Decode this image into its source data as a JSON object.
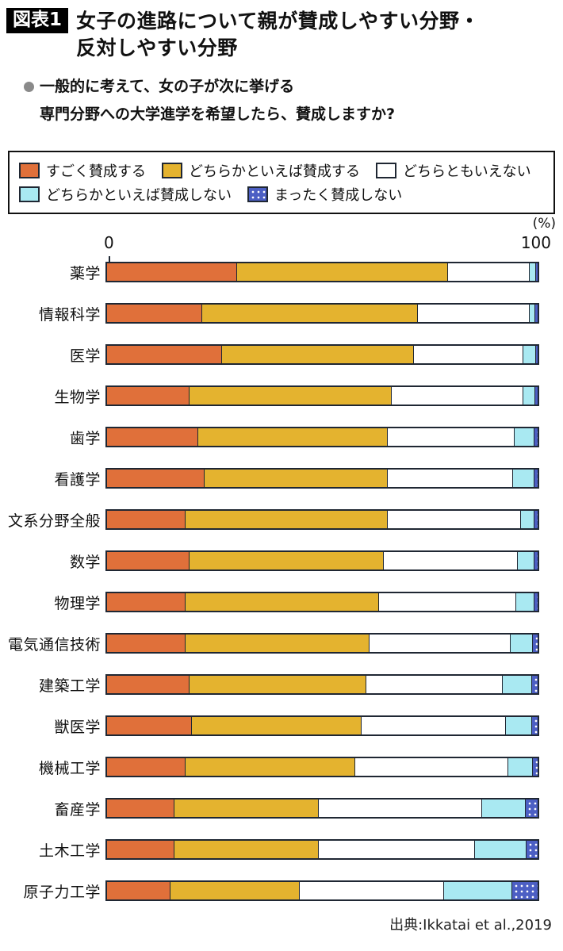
{
  "figure": {
    "badge": "図表1",
    "title_line1": "女子の進路について親が賛成しやすい分野・",
    "title_line2": "反対しやすい分野",
    "question_line1": "一般的に考えて、女の子が次に挙げる",
    "question_line2": "専門分野への大学進学を希望したら、賛成しますか?",
    "source": "出典:Ikkatai et al.,2019"
  },
  "axis": {
    "unit_label": "(%)",
    "min_label": "0",
    "max_label": "100"
  },
  "colors": {
    "strongly_agree": "#E0703A",
    "somewhat_agree": "#E4B32F",
    "neither": "#FFFFFF",
    "somewhat_disagree": "#A9E9F2",
    "strongly_disagree": "#4C5FC4",
    "bar_border": "#1F2733"
  },
  "chart_data": {
    "type": "bar",
    "orientation": "horizontal",
    "stacked": true,
    "unit": "%",
    "xlim": [
      0,
      100
    ],
    "grid": false,
    "legend_position": "top",
    "title": "女子の進路について親が賛成しやすい分野・反対しやすい分野",
    "categories": [
      "薬学",
      "情報科学",
      "医学",
      "生物学",
      "歯学",
      "看護学",
      "文系分野全般",
      "数学",
      "物理学",
      "電気通信技術",
      "建築工学",
      "獣医学",
      "機械工学",
      "畜産学",
      "土木工学",
      "原子力工学"
    ],
    "series": [
      {
        "name": "すごく賛成する",
        "color": "#E0703A",
        "pattern": "solid",
        "values": [
          30,
          22,
          26.5,
          19,
          21,
          22.5,
          18,
          19,
          18,
          18,
          19,
          19.5,
          18,
          15.5,
          15.5,
          14.5
        ]
      },
      {
        "name": "どちらかといえば賛成する",
        "color": "#E4B32F",
        "pattern": "solid",
        "values": [
          49,
          50,
          44.5,
          47,
          44,
          42.5,
          47,
          45,
          45,
          42.7,
          41,
          39.5,
          39.5,
          33.5,
          33.4,
          30
        ]
      },
      {
        "name": "どちらともいえない",
        "color": "#FFFFFF",
        "pattern": "solid",
        "values": [
          19,
          26,
          25.5,
          30.5,
          29.5,
          29.2,
          31,
          31.3,
          31.8,
          32.8,
          31.7,
          33.4,
          35.5,
          37.9,
          36.4,
          33.5
        ]
      },
      {
        "name": "どちらかといえば賛成しない",
        "color": "#A9E9F2",
        "pattern": "solid",
        "values": [
          1.5,
          1.2,
          3,
          2.7,
          4.5,
          4.8,
          3,
          3.7,
          4.2,
          5.3,
          6.8,
          6.1,
          5.8,
          10.1,
          11.9,
          16
        ]
      },
      {
        "name": "まったく賛成しない",
        "color": "#4C5FC4",
        "pattern": "dots",
        "values": [
          0.5,
          0.8,
          0.5,
          0.8,
          1,
          1,
          1,
          1,
          1,
          1.2,
          1.5,
          1.5,
          1.2,
          3,
          2.8,
          6
        ]
      }
    ]
  }
}
